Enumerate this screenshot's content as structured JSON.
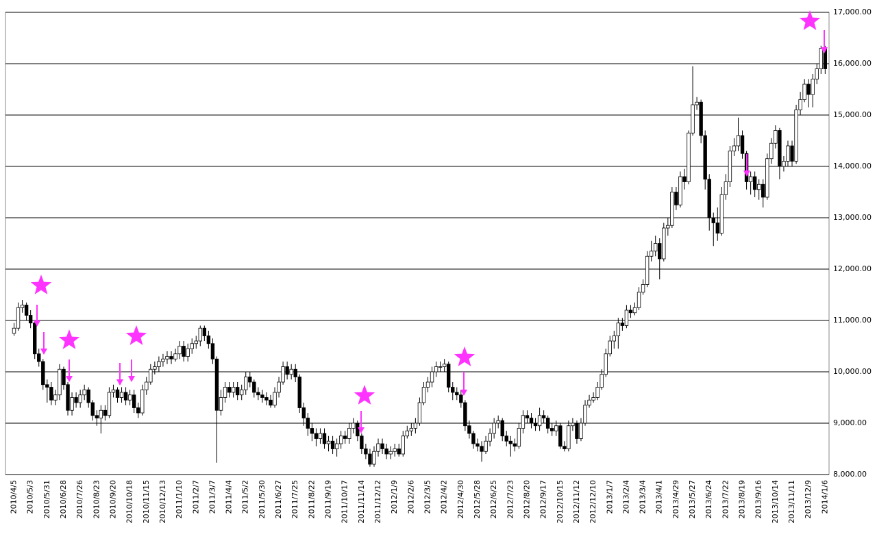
{
  "chart_data": {
    "type": "candlestick",
    "categories": [
      "2010/4/5",
      null,
      null,
      null,
      "2010/5/3",
      null,
      null,
      null,
      "2010/5/31",
      null,
      null,
      null,
      "2010/6/28",
      null,
      null,
      null,
      "2010/7/26",
      null,
      null,
      null,
      "2010/8/23",
      null,
      null,
      null,
      "2010/9/20",
      null,
      null,
      null,
      "2010/10/18",
      null,
      null,
      null,
      "2010/11/15",
      null,
      null,
      null,
      "2010/12/13",
      null,
      null,
      null,
      "2011/1/10",
      null,
      null,
      null,
      "2011/2/7",
      null,
      null,
      null,
      "2011/3/7",
      null,
      null,
      null,
      "2011/4/4",
      null,
      null,
      null,
      "2011/5/2",
      null,
      null,
      null,
      "2011/5/30",
      null,
      null,
      null,
      "2011/6/27",
      null,
      null,
      null,
      "2011/7/25",
      null,
      null,
      null,
      "2011/8/22",
      null,
      null,
      null,
      "2011/9/19",
      null,
      null,
      null,
      "2011/10/17",
      null,
      null,
      null,
      "2011/11/14",
      null,
      null,
      null,
      "2011/12/12",
      null,
      null,
      null,
      "2012/1/9",
      null,
      null,
      null,
      "2012/2/6",
      null,
      null,
      null,
      "2012/3/5",
      null,
      null,
      null,
      "2012/4/2",
      null,
      null,
      null,
      "2012/4/30",
      null,
      null,
      null,
      "2012/5/28",
      null,
      null,
      null,
      "2012/6/25",
      null,
      null,
      null,
      "2012/7/23",
      null,
      null,
      null,
      "2012/8/20",
      null,
      null,
      null,
      "2012/9/17",
      null,
      null,
      null,
      "2012/10/15",
      null,
      null,
      null,
      "2012/11/12",
      null,
      null,
      null,
      "2012/12/10",
      null,
      null,
      null,
      "2013/1/7",
      null,
      null,
      null,
      "2013/2/4",
      null,
      null,
      null,
      "2013/3/4",
      null,
      null,
      null,
      "2013/4/1",
      null,
      null,
      null,
      "2013/4/29",
      null,
      null,
      null,
      "2013/5/27",
      null,
      null,
      null,
      "2013/6/24",
      null,
      null,
      null,
      "2013/7/22",
      null,
      null,
      null,
      "2013/8/19",
      null,
      null,
      null,
      "2013/9/16",
      null,
      null,
      null,
      "2013/10/14",
      null,
      null,
      null,
      "2013/11/11",
      null,
      null,
      null,
      "2013/12/9",
      null,
      null,
      null,
      "2014/1/6"
    ],
    "open": [
      10750,
      10850,
      11250,
      11300,
      11100,
      10950,
      10350,
      10200,
      9750,
      9700,
      9450,
      9550,
      10050,
      9750,
      9250,
      9500,
      9400,
      9550,
      9650,
      9400,
      9150,
      9100,
      9250,
      9150,
      9600,
      9650,
      9500,
      9600,
      9450,
      9550,
      9300,
      9200,
      9650,
      9800,
      10050,
      10100,
      10200,
      10250,
      10300,
      10250,
      10350,
      10500,
      10300,
      10450,
      10550,
      10600,
      10850,
      10700,
      10550,
      10250,
      9250,
      9500,
      9700,
      9600,
      9700,
      9550,
      9650,
      9900,
      9800,
      9600,
      9550,
      9500,
      9450,
      9350,
      9600,
      9800,
      10100,
      9950,
      10050,
      9900,
      9300,
      9100,
      8900,
      8800,
      8700,
      8800,
      8600,
      8650,
      8500,
      8600,
      8750,
      8700,
      8900,
      9000,
      8750,
      8500,
      8400,
      8200,
      8450,
      8600,
      8500,
      8400,
      8450,
      8500,
      8400,
      8750,
      8850,
      8900,
      9000,
      9400,
      9700,
      9800,
      10000,
      10100,
      10100,
      10150,
      9700,
      9600,
      9550,
      9400,
      8950,
      8800,
      8600,
      8550,
      8450,
      8650,
      8800,
      9000,
      9050,
      8750,
      8650,
      8600,
      8550,
      8900,
      9150,
      9100,
      9000,
      8950,
      9150,
      9100,
      8900,
      8850,
      8950,
      8550,
      8500,
      8950,
      9000,
      8700,
      9000,
      9350,
      9450,
      9500,
      9700,
      9950,
      10350,
      10600,
      10700,
      10950,
      10900,
      11200,
      11150,
      11250,
      11550,
      11700,
      12250,
      12350,
      12500,
      12200,
      12800,
      12850,
      13500,
      13250,
      13800,
      13700,
      14650,
      15200,
      15250,
      14600,
      13750,
      13000,
      12900,
      12700,
      13450,
      13700,
      14300,
      14400,
      14600,
      14250,
      13700,
      13800,
      13550,
      13650,
      13400,
      14150,
      14450,
      14700,
      14000,
      14100,
      14400,
      14100,
      15100,
      15300,
      15600,
      15400,
      15700,
      15900,
      16300
    ],
    "high": [
      10950,
      11350,
      11400,
      11350,
      11200,
      11000,
      10450,
      10250,
      9850,
      9800,
      9650,
      10150,
      10100,
      9800,
      9600,
      9600,
      9650,
      9750,
      9700,
      9450,
      9250,
      9350,
      9350,
      9700,
      9750,
      9700,
      9700,
      9700,
      9650,
      9650,
      9400,
      9750,
      9900,
      10150,
      10200,
      10300,
      10350,
      10400,
      10400,
      10450,
      10600,
      10600,
      10550,
      10650,
      10700,
      10900,
      10900,
      10800,
      10650,
      10300,
      9650,
      9800,
      9800,
      9800,
      9800,
      9750,
      10000,
      10000,
      9850,
      9700,
      9650,
      9600,
      9550,
      9700,
      9900,
      10200,
      10200,
      10150,
      10150,
      9950,
      9400,
      9200,
      9000,
      8900,
      8900,
      8900,
      8750,
      8750,
      8700,
      8850,
      8850,
      9000,
      9100,
      9050,
      8800,
      8600,
      8500,
      8550,
      8700,
      8700,
      8600,
      8550,
      8600,
      8600,
      8850,
      8950,
      9000,
      9100,
      9500,
      9800,
      9900,
      10100,
      10200,
      10200,
      10250,
      10200,
      9800,
      9700,
      9650,
      9450,
      9050,
      8850,
      8700,
      8650,
      8750,
      8900,
      9100,
      9150,
      9100,
      8850,
      8750,
      8700,
      9000,
      9250,
      9250,
      9200,
      9100,
      9300,
      9250,
      9150,
      9000,
      9050,
      9000,
      8650,
      9050,
      9100,
      9050,
      9100,
      9450,
      9550,
      9600,
      9800,
      10050,
      10450,
      10700,
      10800,
      11050,
      11050,
      11300,
      11300,
      11350,
      11650,
      11800,
      12350,
      12550,
      12650,
      12600,
      12900,
      13000,
      13600,
      13600,
      13900,
      13950,
      14700,
      15950,
      15350,
      15300,
      14700,
      13850,
      13100,
      13200,
      13600,
      13850,
      14400,
      14550,
      14950,
      14700,
      14300,
      13900,
      13900,
      13750,
      13750,
      14250,
      14550,
      14800,
      14750,
      14200,
      14500,
      14500,
      15200,
      15450,
      15700,
      15700,
      15800,
      16000,
      16350,
      16350
    ],
    "low": [
      10700,
      10800,
      11150,
      11000,
      10850,
      10250,
      10100,
      9650,
      9400,
      9350,
      9350,
      9450,
      9650,
      9150,
      9150,
      9300,
      9300,
      9450,
      9300,
      9050,
      8950,
      8800,
      9050,
      9100,
      9500,
      9400,
      9400,
      9350,
      9350,
      9200,
      9100,
      9150,
      9550,
      9750,
      9950,
      10000,
      10100,
      10150,
      10150,
      10200,
      10250,
      10200,
      10200,
      10350,
      10450,
      10500,
      10600,
      10450,
      10150,
      8230,
      9150,
      9400,
      9500,
      9500,
      9450,
      9450,
      9550,
      9700,
      9500,
      9450,
      9400,
      9350,
      9300,
      9300,
      9500,
      9750,
      9850,
      9850,
      9800,
      9200,
      8950,
      8750,
      8650,
      8550,
      8600,
      8500,
      8450,
      8400,
      8350,
      8500,
      8600,
      8600,
      8800,
      8650,
      8400,
      8300,
      8150,
      8150,
      8350,
      8400,
      8300,
      8300,
      8350,
      8350,
      8350,
      8700,
      8750,
      8800,
      8950,
      9350,
      9600,
      9700,
      9900,
      10000,
      10000,
      9600,
      9450,
      9450,
      9300,
      8850,
      8700,
      8500,
      8450,
      8250,
      8400,
      8550,
      8700,
      8900,
      8650,
      8550,
      8350,
      8450,
      8500,
      8800,
      9000,
      8900,
      8850,
      8850,
      9000,
      8800,
      8750,
      8750,
      8500,
      8450,
      8450,
      8850,
      8600,
      8650,
      8950,
      9300,
      9400,
      9450,
      9650,
      9900,
      10300,
      10450,
      10450,
      10800,
      10850,
      11050,
      11100,
      11200,
      11500,
      11650,
      12150,
      12250,
      11800,
      12150,
      12650,
      12800,
      13150,
      13200,
      13550,
      13650,
      14600,
      15100,
      14450,
      13550,
      12750,
      12450,
      12550,
      12650,
      13350,
      13600,
      14200,
      14300,
      14150,
      13550,
      13450,
      13400,
      13350,
      13200,
      13350,
      14050,
      14350,
      13750,
      13900,
      14000,
      14000,
      14050,
      15000,
      15250,
      15150,
      15150,
      15600,
      15800,
      15800
    ],
    "close": [
      10850,
      11250,
      11300,
      11100,
      10950,
      10350,
      10200,
      9750,
      9700,
      9450,
      9550,
      10050,
      9750,
      9250,
      9500,
      9400,
      9550,
      9650,
      9400,
      9150,
      9100,
      9250,
      9150,
      9600,
      9650,
      9500,
      9600,
      9450,
      9550,
      9300,
      9200,
      9650,
      9800,
      10050,
      10100,
      10200,
      10250,
      10300,
      10250,
      10350,
      10500,
      10300,
      10450,
      10550,
      10600,
      10850,
      10700,
      10550,
      10250,
      9250,
      9500,
      9700,
      9600,
      9700,
      9550,
      9650,
      9900,
      9800,
      9600,
      9550,
      9500,
      9450,
      9350,
      9600,
      9800,
      10100,
      9950,
      10050,
      9900,
      9300,
      9100,
      8900,
      8800,
      8700,
      8800,
      8600,
      8650,
      8500,
      8600,
      8750,
      8700,
      8900,
      9000,
      8750,
      8500,
      8400,
      8200,
      8450,
      8600,
      8500,
      8400,
      8450,
      8500,
      8400,
      8750,
      8850,
      8900,
      9000,
      9400,
      9700,
      9800,
      10000,
      10100,
      10100,
      10150,
      9700,
      9600,
      9550,
      9400,
      8950,
      8800,
      8600,
      8550,
      8450,
      8650,
      8800,
      9000,
      9050,
      8750,
      8650,
      8600,
      8550,
      8900,
      9150,
      9100,
      9000,
      8950,
      9150,
      9100,
      8900,
      8850,
      8950,
      8550,
      8500,
      8950,
      9000,
      8700,
      9000,
      9350,
      9450,
      9500,
      9700,
      9950,
      10350,
      10600,
      10700,
      10950,
      10900,
      11200,
      11150,
      11250,
      11550,
      11700,
      12250,
      12350,
      12500,
      12200,
      12800,
      12850,
      13500,
      13250,
      13800,
      13700,
      14650,
      15200,
      15250,
      14600,
      13750,
      13000,
      12900,
      12700,
      13450,
      13700,
      14300,
      14400,
      14600,
      14250,
      13700,
      13800,
      13550,
      13650,
      13400,
      14150,
      14450,
      14700,
      14000,
      14100,
      14400,
      14100,
      15100,
      15300,
      15600,
      15400,
      15700,
      15900,
      16300,
      15900
    ],
    "up_color": "#ffffff",
    "down_color": "#000000",
    "ylim": [
      8000,
      17000
    ],
    "yticks": [
      {
        "value": 8000,
        "label": "8,000.00"
      },
      {
        "value": 9000,
        "label": "9,000.00"
      },
      {
        "value": 10000,
        "label": "10,000.00"
      },
      {
        "value": 11000,
        "label": "11,000.00"
      },
      {
        "value": 12000,
        "label": "12,000.00"
      },
      {
        "value": 13000,
        "label": "13,000.00"
      },
      {
        "value": 14000,
        "label": "14,000.00"
      },
      {
        "value": 15000,
        "label": "15,000.00"
      },
      {
        "value": 16000,
        "label": "16,000.00"
      },
      {
        "value": 17000,
        "label": "17,000.00"
      }
    ],
    "grid": true
  }
}
